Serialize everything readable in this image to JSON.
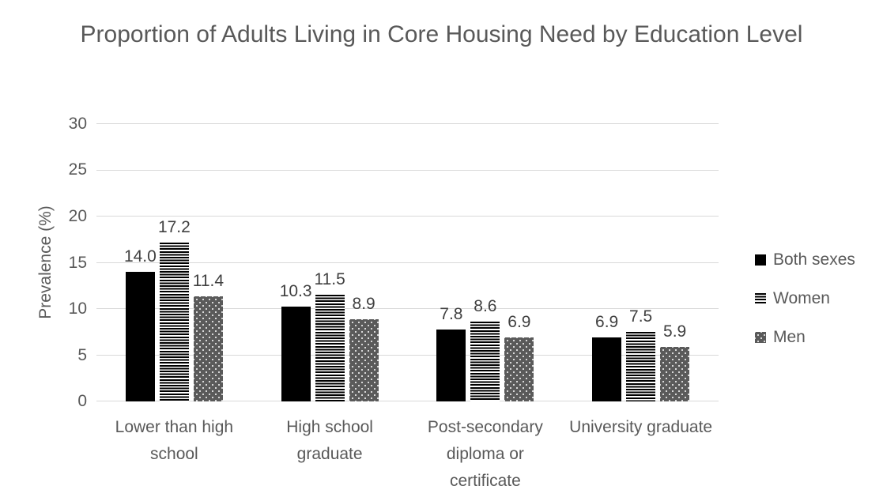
{
  "chart_data": {
    "type": "bar",
    "title": "Proportion of Adults Living in Core Housing Need by Education Level",
    "ylabel": "Prevalence (%)",
    "xlabel": "",
    "ylim": [
      0,
      30
    ],
    "yticks": [
      0,
      5,
      10,
      15,
      20,
      25,
      30
    ],
    "grid": true,
    "legend_position": "right",
    "data_labels": true,
    "data_label_decimals": 1,
    "categories": [
      "Lower than high school",
      "High school graduate",
      "Post-secondary diploma or certificate",
      "University graduate"
    ],
    "series": [
      {
        "name": "Both sexes",
        "pattern": "solid-black",
        "values": [
          14.0,
          10.3,
          7.8,
          6.9
        ]
      },
      {
        "name": "Women",
        "pattern": "horizontal-stripes",
        "values": [
          17.2,
          11.5,
          8.6,
          7.5
        ]
      },
      {
        "name": "Men",
        "pattern": "dotted-dark-gray",
        "values": [
          11.4,
          8.9,
          6.9,
          5.9
        ]
      }
    ]
  },
  "style": {
    "background": "#ffffff",
    "text_color": "#595959",
    "data_label_color": "#404040",
    "gridline_color": "#d9d9d9",
    "bar_black": "#000000",
    "bar_dot_gray": "#5a5a5a"
  }
}
